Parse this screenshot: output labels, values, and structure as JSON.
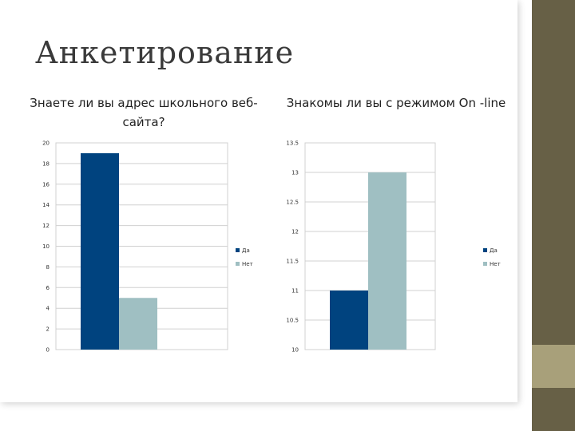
{
  "slide": {
    "title": "Анкетирование"
  },
  "colors": {
    "series_yes": "#00437f",
    "series_no": "#9fbfc2",
    "grid": "#d0d0d0",
    "accent": "#676046",
    "accent_light": "#a8a07a"
  },
  "chart_data": [
    {
      "type": "bar",
      "title": "Знаете ли вы адрес школьного веб-сайта?",
      "categories": [
        ""
      ],
      "series": [
        {
          "name": "Да",
          "values": [
            19
          ]
        },
        {
          "name": "Нет",
          "values": [
            5
          ]
        }
      ],
      "ylim": [
        0,
        20
      ],
      "yticks": [
        "0",
        "2",
        "4",
        "6",
        "8",
        "10",
        "12",
        "14",
        "16",
        "18",
        "20"
      ],
      "grid": true,
      "legend": "right"
    },
    {
      "type": "bar",
      "title": "Знакомы ли вы с режимом On -line",
      "categories": [
        ""
      ],
      "series": [
        {
          "name": "Да",
          "values": [
            11
          ]
        },
        {
          "name": "Нет",
          "values": [
            13
          ]
        }
      ],
      "ylim": [
        10,
        13.5
      ],
      "yticks": [
        "10",
        "10.5",
        "11",
        "11.5",
        "12",
        "12.5",
        "13",
        "13.5"
      ],
      "grid": true,
      "legend": "right"
    }
  ]
}
